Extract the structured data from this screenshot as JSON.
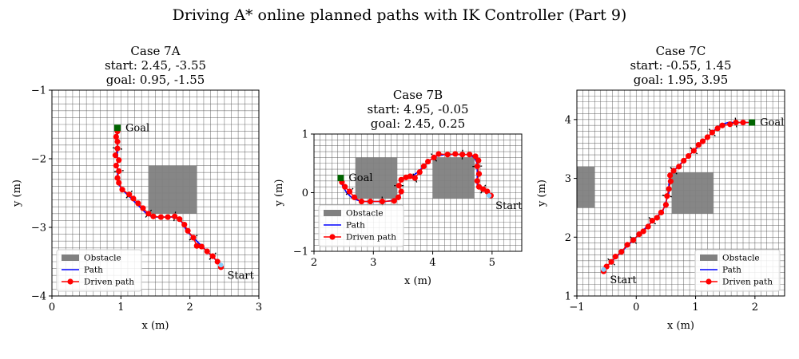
{
  "figure": {
    "suptitle": "Driving A* online planned paths with IK Controller (Part 9)"
  },
  "colors": {
    "obstacle": "#808080",
    "path": "#0000ff",
    "driven": "#ff0000",
    "goal_marker": "#006400",
    "start_marker": "#87cefa",
    "grid": "#555555"
  },
  "chart_data": [
    {
      "type": "line",
      "title_lines": [
        "Case 7A",
        "start: 2.45, -3.55",
        "goal: 0.95, -1.55"
      ],
      "xlabel": "x (m)",
      "ylabel": "y (m)",
      "xlim": [
        0,
        3
      ],
      "ylim": [
        -4,
        -1
      ],
      "xticks": [
        0,
        1,
        2,
        3
      ],
      "yticks": [
        -4,
        -3,
        -2,
        -1
      ],
      "grid": true,
      "grid_step": 0.1,
      "legend_location": "lower-left",
      "legend": [
        "Obstacle",
        "Path",
        "Driven path"
      ],
      "obstacles": [
        [
          1.4,
          -2.8,
          2.1,
          -2.1
        ]
      ],
      "start_label": "Start",
      "goal_label": "Goal",
      "start": [
        2.45,
        -3.55
      ],
      "goal": [
        0.95,
        -1.55
      ],
      "path": [
        [
          2.45,
          -3.55
        ],
        [
          2.35,
          -3.45
        ],
        [
          2.25,
          -3.35
        ],
        [
          2.15,
          -3.25
        ],
        [
          2.05,
          -3.15
        ],
        [
          1.95,
          -3.05
        ],
        [
          1.9,
          -2.95
        ],
        [
          1.85,
          -2.88
        ],
        [
          1.75,
          -2.85
        ],
        [
          1.6,
          -2.85
        ],
        [
          1.45,
          -2.85
        ],
        [
          1.35,
          -2.78
        ],
        [
          1.25,
          -2.68
        ],
        [
          1.15,
          -2.58
        ],
        [
          1.05,
          -2.48
        ],
        [
          0.97,
          -2.38
        ],
        [
          0.95,
          -2.25
        ],
        [
          0.95,
          -2.1
        ],
        [
          0.95,
          -1.95
        ],
        [
          0.95,
          -1.8
        ],
        [
          0.95,
          -1.65
        ],
        [
          0.95,
          -1.55
        ]
      ],
      "driven": [
        [
          2.45,
          -3.58
        ],
        [
          2.4,
          -3.5
        ],
        [
          2.33,
          -3.42
        ],
        [
          2.25,
          -3.35
        ],
        [
          2.17,
          -3.28
        ],
        [
          2.1,
          -3.27
        ],
        [
          2.05,
          -3.15
        ],
        [
          1.97,
          -3.05
        ],
        [
          1.92,
          -2.96
        ],
        [
          1.85,
          -2.88
        ],
        [
          1.78,
          -2.84
        ],
        [
          1.68,
          -2.85
        ],
        [
          1.58,
          -2.85
        ],
        [
          1.47,
          -2.84
        ],
        [
          1.4,
          -2.8
        ],
        [
          1.32,
          -2.72
        ],
        [
          1.25,
          -2.65
        ],
        [
          1.18,
          -2.58
        ],
        [
          1.12,
          -2.52
        ],
        [
          1.02,
          -2.45
        ],
        [
          0.97,
          -2.35
        ],
        [
          0.95,
          -2.28
        ],
        [
          0.97,
          -2.18
        ],
        [
          0.93,
          -2.1
        ],
        [
          0.97,
          -2.02
        ],
        [
          0.92,
          -1.95
        ],
        [
          0.95,
          -1.85
        ],
        [
          0.95,
          -1.75
        ],
        [
          0.93,
          -1.68
        ],
        [
          0.95,
          -1.6
        ],
        [
          0.95,
          -1.55
        ]
      ]
    },
    {
      "type": "line",
      "title_lines": [
        "Case 7B",
        "start: 4.95, -0.05",
        "goal: 2.45, 0.25"
      ],
      "xlabel": "x (m)",
      "ylabel": "y (m)",
      "xlim": [
        2,
        5.5
      ],
      "ylim": [
        -1,
        1
      ],
      "xticks": [
        2,
        3,
        4,
        5
      ],
      "yticks": [
        -1,
        0,
        1
      ],
      "grid": true,
      "grid_step": 0.1,
      "legend_location": "lower-left",
      "legend": [
        "Obstacle",
        "Path",
        "Driven path"
      ],
      "obstacles": [
        [
          2.7,
          -0.1,
          3.4,
          0.6
        ],
        [
          4.0,
          -0.1,
          4.7,
          0.6
        ]
      ],
      "start_label": "Start",
      "goal_label": "Goal",
      "start": [
        4.95,
        -0.05
      ],
      "goal": [
        2.45,
        0.25
      ],
      "path": [
        [
          4.95,
          -0.05
        ],
        [
          4.85,
          0.05
        ],
        [
          4.75,
          0.1
        ],
        [
          4.75,
          0.3
        ],
        [
          4.75,
          0.5
        ],
        [
          4.7,
          0.6
        ],
        [
          4.6,
          0.65
        ],
        [
          4.4,
          0.65
        ],
        [
          4.2,
          0.65
        ],
        [
          4.05,
          0.62
        ],
        [
          3.95,
          0.55
        ],
        [
          3.85,
          0.45
        ],
        [
          3.75,
          0.35
        ],
        [
          3.65,
          0.28
        ],
        [
          3.55,
          0.25
        ],
        [
          3.45,
          0.22
        ],
        [
          3.45,
          0.1
        ],
        [
          3.45,
          -0.05
        ],
        [
          3.35,
          -0.13
        ],
        [
          3.2,
          -0.15
        ],
        [
          3.0,
          -0.15
        ],
        [
          2.8,
          -0.15
        ],
        [
          2.65,
          -0.1
        ],
        [
          2.55,
          0.0
        ],
        [
          2.48,
          0.12
        ],
        [
          2.45,
          0.25
        ]
      ],
      "driven": [
        [
          4.98,
          -0.05
        ],
        [
          4.92,
          0.02
        ],
        [
          4.85,
          0.06
        ],
        [
          4.78,
          0.1
        ],
        [
          4.75,
          0.2
        ],
        [
          4.78,
          0.32
        ],
        [
          4.75,
          0.45
        ],
        [
          4.77,
          0.55
        ],
        [
          4.72,
          0.62
        ],
        [
          4.62,
          0.65
        ],
        [
          4.5,
          0.65
        ],
        [
          4.38,
          0.66
        ],
        [
          4.25,
          0.65
        ],
        [
          4.1,
          0.66
        ],
        [
          4.02,
          0.6
        ],
        [
          3.92,
          0.53
        ],
        [
          3.85,
          0.45
        ],
        [
          3.78,
          0.35
        ],
        [
          3.7,
          0.25
        ],
        [
          3.62,
          0.28
        ],
        [
          3.55,
          0.26
        ],
        [
          3.47,
          0.22
        ],
        [
          3.43,
          0.12
        ],
        [
          3.47,
          0.02
        ],
        [
          3.42,
          -0.08
        ],
        [
          3.35,
          -0.14
        ],
        [
          3.15,
          -0.15
        ],
        [
          2.95,
          -0.15
        ],
        [
          2.8,
          -0.15
        ],
        [
          2.68,
          -0.08
        ],
        [
          2.6,
          0.02
        ],
        [
          2.52,
          0.1
        ],
        [
          2.47,
          0.18
        ],
        [
          2.45,
          0.25
        ]
      ]
    },
    {
      "type": "line",
      "title_lines": [
        "Case 7C",
        "start: -0.55, 1.45",
        "goal: 1.95, 3.95"
      ],
      "xlabel": "x (m)",
      "ylabel": "y (m)",
      "xlim": [
        -1,
        2.5
      ],
      "ylim": [
        1,
        4.5
      ],
      "xticks": [
        -1,
        0,
        1,
        2
      ],
      "yticks": [
        1,
        2,
        3,
        4
      ],
      "grid": true,
      "grid_step": 0.1,
      "legend_location": "lower-right",
      "legend": [
        "Obstacle",
        "Path",
        "Driven path"
      ],
      "obstacles": [
        [
          -1.0,
          2.5,
          -0.7,
          3.2
        ],
        [
          0.6,
          2.4,
          1.3,
          3.1
        ]
      ],
      "start_label": "Start",
      "goal_label": "Goal",
      "start": [
        -0.55,
        1.45
      ],
      "goal": [
        1.95,
        3.95
      ],
      "path": [
        [
          -0.55,
          1.45
        ],
        [
          -0.45,
          1.55
        ],
        [
          -0.35,
          1.65
        ],
        [
          -0.25,
          1.75
        ],
        [
          -0.15,
          1.85
        ],
        [
          -0.05,
          1.95
        ],
        [
          0.05,
          2.05
        ],
        [
          0.15,
          2.15
        ],
        [
          0.25,
          2.25
        ],
        [
          0.35,
          2.35
        ],
        [
          0.45,
          2.45
        ],
        [
          0.5,
          2.6
        ],
        [
          0.55,
          2.75
        ],
        [
          0.55,
          2.9
        ],
        [
          0.57,
          3.05
        ],
        [
          0.65,
          3.15
        ],
        [
          0.75,
          3.25
        ],
        [
          0.85,
          3.35
        ],
        [
          0.95,
          3.45
        ],
        [
          1.05,
          3.55
        ],
        [
          1.15,
          3.65
        ],
        [
          1.25,
          3.75
        ],
        [
          1.35,
          3.85
        ],
        [
          1.45,
          3.92
        ],
        [
          1.55,
          3.95
        ],
        [
          1.75,
          3.95
        ],
        [
          1.95,
          3.95
        ]
      ],
      "driven": [
        [
          -0.55,
          1.42
        ],
        [
          -0.5,
          1.5
        ],
        [
          -0.42,
          1.58
        ],
        [
          -0.35,
          1.67
        ],
        [
          -0.25,
          1.75
        ],
        [
          -0.15,
          1.87
        ],
        [
          -0.05,
          1.95
        ],
        [
          0.05,
          2.05
        ],
        [
          0.12,
          2.1
        ],
        [
          0.2,
          2.18
        ],
        [
          0.27,
          2.28
        ],
        [
          0.35,
          2.33
        ],
        [
          0.42,
          2.42
        ],
        [
          0.5,
          2.55
        ],
        [
          0.52,
          2.7
        ],
        [
          0.55,
          2.82
        ],
        [
          0.58,
          2.95
        ],
        [
          0.57,
          3.05
        ],
        [
          0.63,
          3.13
        ],
        [
          0.72,
          3.2
        ],
        [
          0.8,
          3.3
        ],
        [
          0.88,
          3.38
        ],
        [
          0.97,
          3.47
        ],
        [
          1.05,
          3.57
        ],
        [
          1.12,
          3.63
        ],
        [
          1.2,
          3.7
        ],
        [
          1.28,
          3.78
        ],
        [
          1.37,
          3.85
        ],
        [
          1.45,
          3.9
        ],
        [
          1.58,
          3.92
        ],
        [
          1.68,
          3.95
        ],
        [
          1.8,
          3.95
        ],
        [
          1.95,
          3.95
        ]
      ]
    }
  ]
}
